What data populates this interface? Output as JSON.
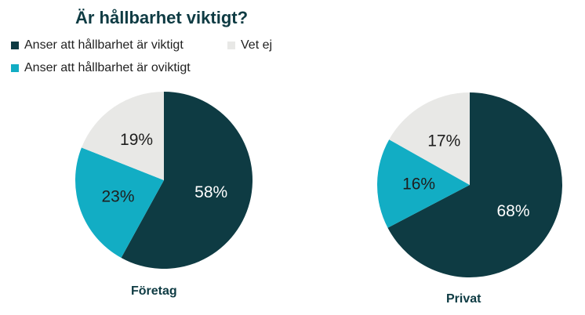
{
  "chart_data": {
    "type": "pie",
    "title": "Är hållbarhet viktigt?",
    "legend": [
      {
        "label": "Anser att hållbarhet är viktigt",
        "color": "#0e3b43"
      },
      {
        "label": "Vet ej",
        "color": "#e8e8e6"
      },
      {
        "label": "Anser att hållbarhet är oviktigt",
        "color": "#12adc4"
      }
    ],
    "legend_position": "top-left",
    "pies": [
      {
        "name": "Företag",
        "slices": [
          {
            "label": "Anser att hållbarhet är viktigt",
            "value": 58,
            "text": "58%"
          },
          {
            "label": "Anser att hållbarhet är oviktigt",
            "value": 23,
            "text": "23%"
          },
          {
            "label": "Vet ej",
            "value": 19,
            "text": "19%"
          }
        ]
      },
      {
        "name": "Privat",
        "slices": [
          {
            "label": "Anser att hållbarhet är viktigt",
            "value": 68,
            "text": "68%"
          },
          {
            "label": "Anser att hållbarhet är oviktigt",
            "value": 16,
            "text": "16%"
          },
          {
            "label": "Vet ej",
            "value": 17,
            "text": "17%"
          }
        ]
      }
    ]
  }
}
